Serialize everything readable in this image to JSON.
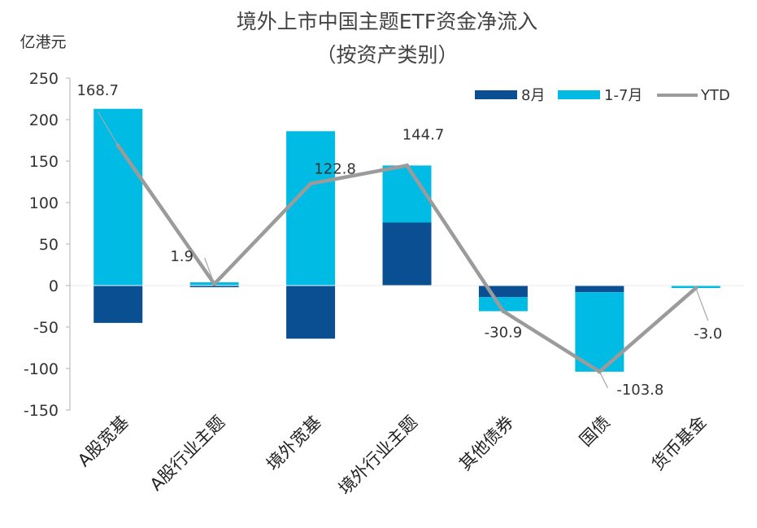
{
  "chart_data": {
    "type": "bar",
    "title": "境外上市中国主题ETF资金净流入",
    "subtitle": "（按资产类别）",
    "ylabel": "亿港元",
    "ylim": [
      -150,
      250
    ],
    "yticks": [
      250,
      200,
      150,
      100,
      50,
      0,
      -50,
      -100,
      -150
    ],
    "stacked": true,
    "categories": [
      "A股宽基",
      "A股行业主题",
      "境外宽基",
      "境外行业主题",
      "其他债券",
      "国债",
      "货币基金"
    ],
    "series": [
      {
        "name": "8月",
        "kind": "bar",
        "values": [
          -45,
          -2,
          -64,
          76,
          -14,
          -8,
          0
        ]
      },
      {
        "name": "1-7月",
        "kind": "bar",
        "values": [
          213,
          3.9,
          186,
          68.7,
          -16.9,
          -95.8,
          -3.0
        ]
      },
      {
        "name": "YTD",
        "kind": "line",
        "values": [
          168.7,
          1.9,
          122.8,
          144.7,
          -30.9,
          -103.8,
          -3.0
        ]
      }
    ],
    "data_labels": [
      "168.7",
      "1.9",
      "122.8",
      "144.7",
      "-30.9",
      "-103.8",
      "-3.0"
    ],
    "legend_position": "top-right",
    "colors": {
      "8月": "#0b4f93",
      "1-7月": "#00bce4",
      "YTD": "#9b9b9b",
      "axis": "#bfbfbf"
    }
  }
}
